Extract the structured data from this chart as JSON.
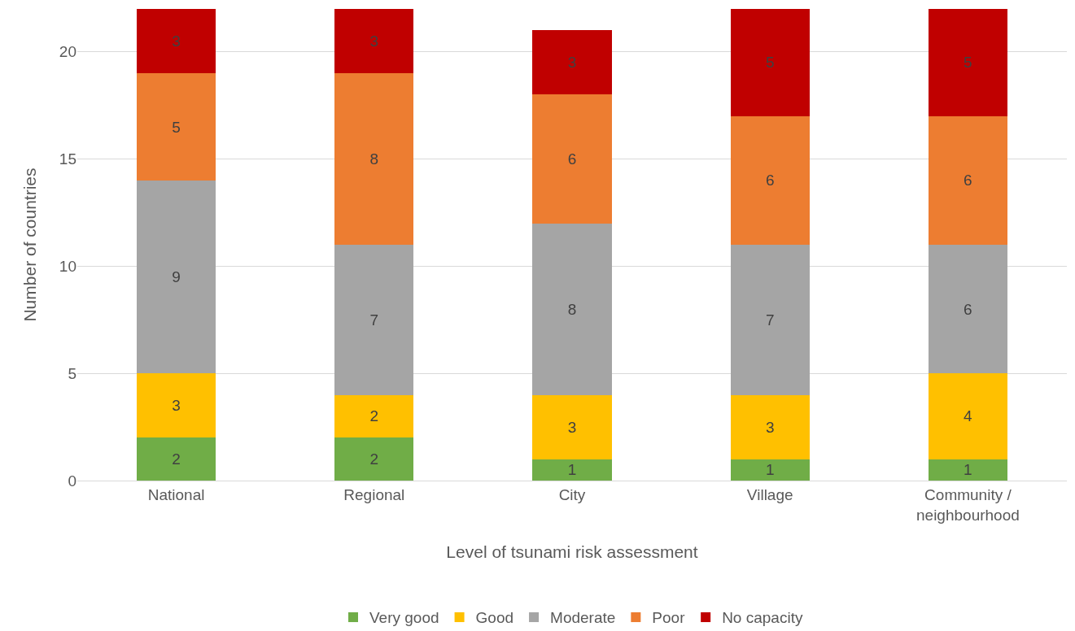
{
  "chart_data": {
    "type": "bar",
    "stacked": true,
    "xlabel": "Level of tsunami risk assessment",
    "ylabel": "Number of countries",
    "categories": [
      "National",
      "Regional",
      "City",
      "Village",
      "Community / neighbourhood"
    ],
    "series": [
      {
        "name": "Very good",
        "color": "#70ad47",
        "values": [
          2,
          2,
          1,
          1,
          1
        ]
      },
      {
        "name": "Good",
        "color": "#ffc000",
        "values": [
          3,
          2,
          3,
          3,
          4
        ]
      },
      {
        "name": "Moderate",
        "color": "#a5a5a5",
        "values": [
          9,
          7,
          8,
          7,
          6
        ]
      },
      {
        "name": "Poor",
        "color": "#ed7d31",
        "values": [
          5,
          8,
          6,
          6,
          6
        ]
      },
      {
        "name": "No capacity",
        "color": "#c00000",
        "values": [
          3,
          3,
          3,
          5,
          5
        ]
      }
    ],
    "ylim": [
      0,
      22
    ],
    "yticks": [
      0,
      5,
      10,
      15,
      20
    ],
    "grid": "y",
    "legend": "bottom",
    "data_labels": true
  }
}
